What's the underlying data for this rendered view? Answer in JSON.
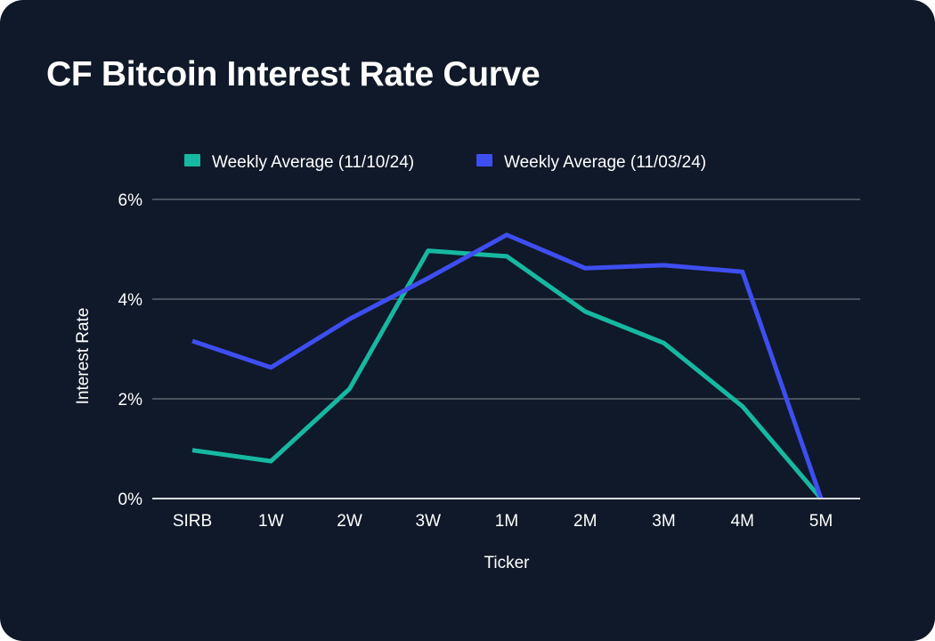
{
  "chart_data": {
    "type": "line",
    "title": "CF Bitcoin Interest Rate Curve",
    "xlabel": "Ticker",
    "ylabel": "Interest Rate",
    "categories": [
      "SIRB",
      "1W",
      "2W",
      "3W",
      "1M",
      "2M",
      "3M",
      "4M",
      "5M"
    ],
    "ylim": [
      0,
      6
    ],
    "yticks": [
      0,
      2,
      4,
      6
    ],
    "ytick_labels": [
      "0%",
      "2%",
      "4%",
      "6%"
    ],
    "grid": true,
    "legend_position": "top-center",
    "series": [
      {
        "name": "Weekly Average (11/10/24)",
        "color": "#17b8a0",
        "values": [
          0.97,
          0.75,
          2.2,
          4.97,
          4.86,
          3.75,
          3.12,
          1.85,
          0.0
        ]
      },
      {
        "name": "Weekly Average (11/03/24)",
        "color": "#3e4ef0",
        "values": [
          3.16,
          2.63,
          3.6,
          4.42,
          5.29,
          4.62,
          4.68,
          4.55,
          0.0
        ]
      }
    ]
  },
  "colors": {
    "background": "#0f1929",
    "gridline": "#4a525e",
    "axis": "#d9dce1"
  }
}
